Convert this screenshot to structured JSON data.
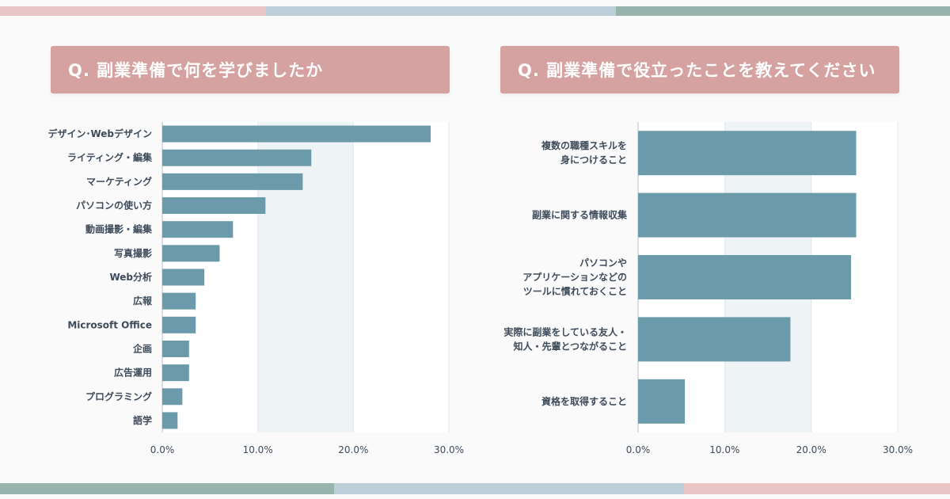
{
  "decor": {
    "top_stripe": [
      "#e9c5c5",
      "#bccfd9",
      "#97b5ad"
    ],
    "bottom_stripe": [
      "#97b5ad",
      "#bccfd9",
      "#e9c5c5"
    ]
  },
  "colors": {
    "bar": "#6b9aaa",
    "header": "#d6a1a1",
    "band": "#eef3f6"
  },
  "headers": {
    "left": "Q. 副業準備で何を学びましたか",
    "right": "Q. 副業準備で役立ったことを教えてください"
  },
  "chart_data": [
    {
      "type": "bar",
      "orientation": "horizontal",
      "categories": [
        "デザイン･Webデザイン",
        "ライティング・編集",
        "マーケティング",
        "パソコンの使い方",
        "動画撮影・編集",
        "写真撮影",
        "Web分析",
        "広報",
        "Microsoft Office",
        "企画",
        "広告運用",
        "プログラミング",
        "語学"
      ],
      "values": [
        28.1,
        15.6,
        14.7,
        10.8,
        7.4,
        6.0,
        4.4,
        3.5,
        3.5,
        2.8,
        2.8,
        2.1,
        1.6
      ],
      "xlim": [
        0,
        30
      ],
      "ticks": [
        "0.0%",
        "10.0%",
        "20.0%",
        "30.0%"
      ]
    },
    {
      "type": "bar",
      "orientation": "horizontal",
      "categories": [
        [
          "複数の職種スキルを",
          "身につけること"
        ],
        [
          "副業に関する情報収集"
        ],
        [
          "パソコンや",
          "アプリケーションなどの",
          "ツールに慣れておくこと"
        ],
        [
          "実際に副業をしている友人・",
          "知人・先輩とつながること"
        ],
        [
          "資格を取得すること"
        ]
      ],
      "values": [
        25.2,
        25.2,
        24.6,
        17.6,
        5.4
      ],
      "xlim": [
        0,
        30
      ],
      "ticks": [
        "0.0%",
        "10.0%",
        "20.0%",
        "30.0%"
      ]
    }
  ]
}
